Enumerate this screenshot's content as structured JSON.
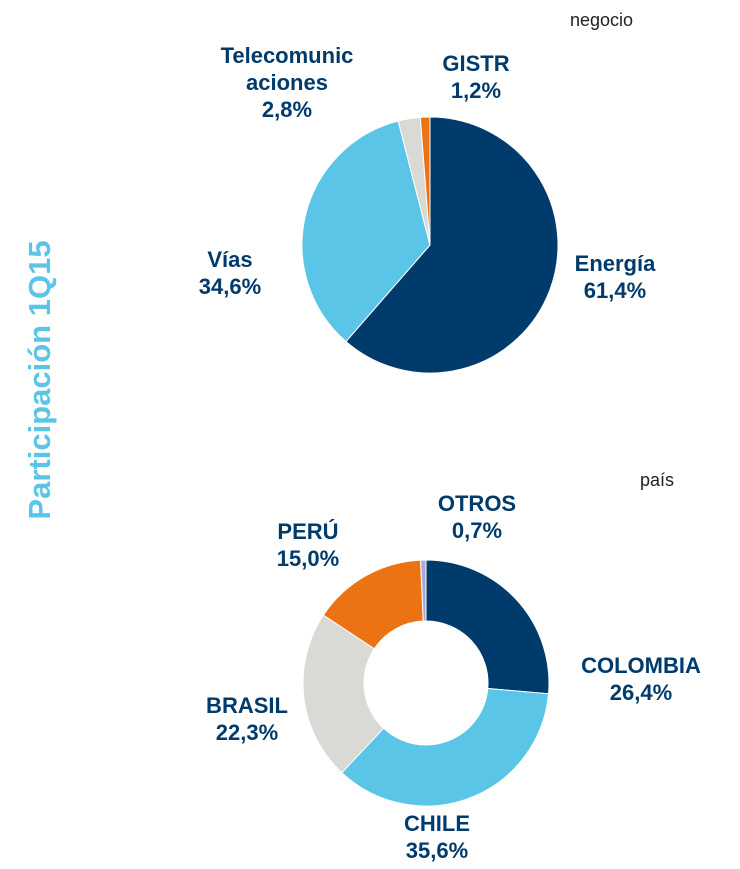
{
  "side_title": "Participación 1Q15",
  "chart_data": [
    {
      "type": "pie",
      "title": "negocio",
      "categories": [
        "Energía",
        "Vías",
        "Telecomunicaciones",
        "GISTR"
      ],
      "values": [
        61.4,
        34.6,
        2.8,
        1.2
      ],
      "value_labels": [
        "61,4%",
        "34,6%",
        "2,8%",
        "1,2%"
      ],
      "colors": [
        "#003b6b",
        "#5bc5e8",
        "#d9d9d6",
        "#ec7314"
      ]
    },
    {
      "type": "donut",
      "title": "país",
      "categories": [
        "COLOMBIA",
        "CHILE",
        "BRASIL",
        "PERÚ",
        "OTROS"
      ],
      "values": [
        26.4,
        35.6,
        22.3,
        15.0,
        0.7
      ],
      "value_labels": [
        "26,4%",
        "35,6%",
        "22,3%",
        "15,0%",
        "0,7%"
      ],
      "colors": [
        "#003b6b",
        "#5bc5e8",
        "#d9d9d6",
        "#ec7314",
        "#a9a9e0"
      ]
    }
  ]
}
